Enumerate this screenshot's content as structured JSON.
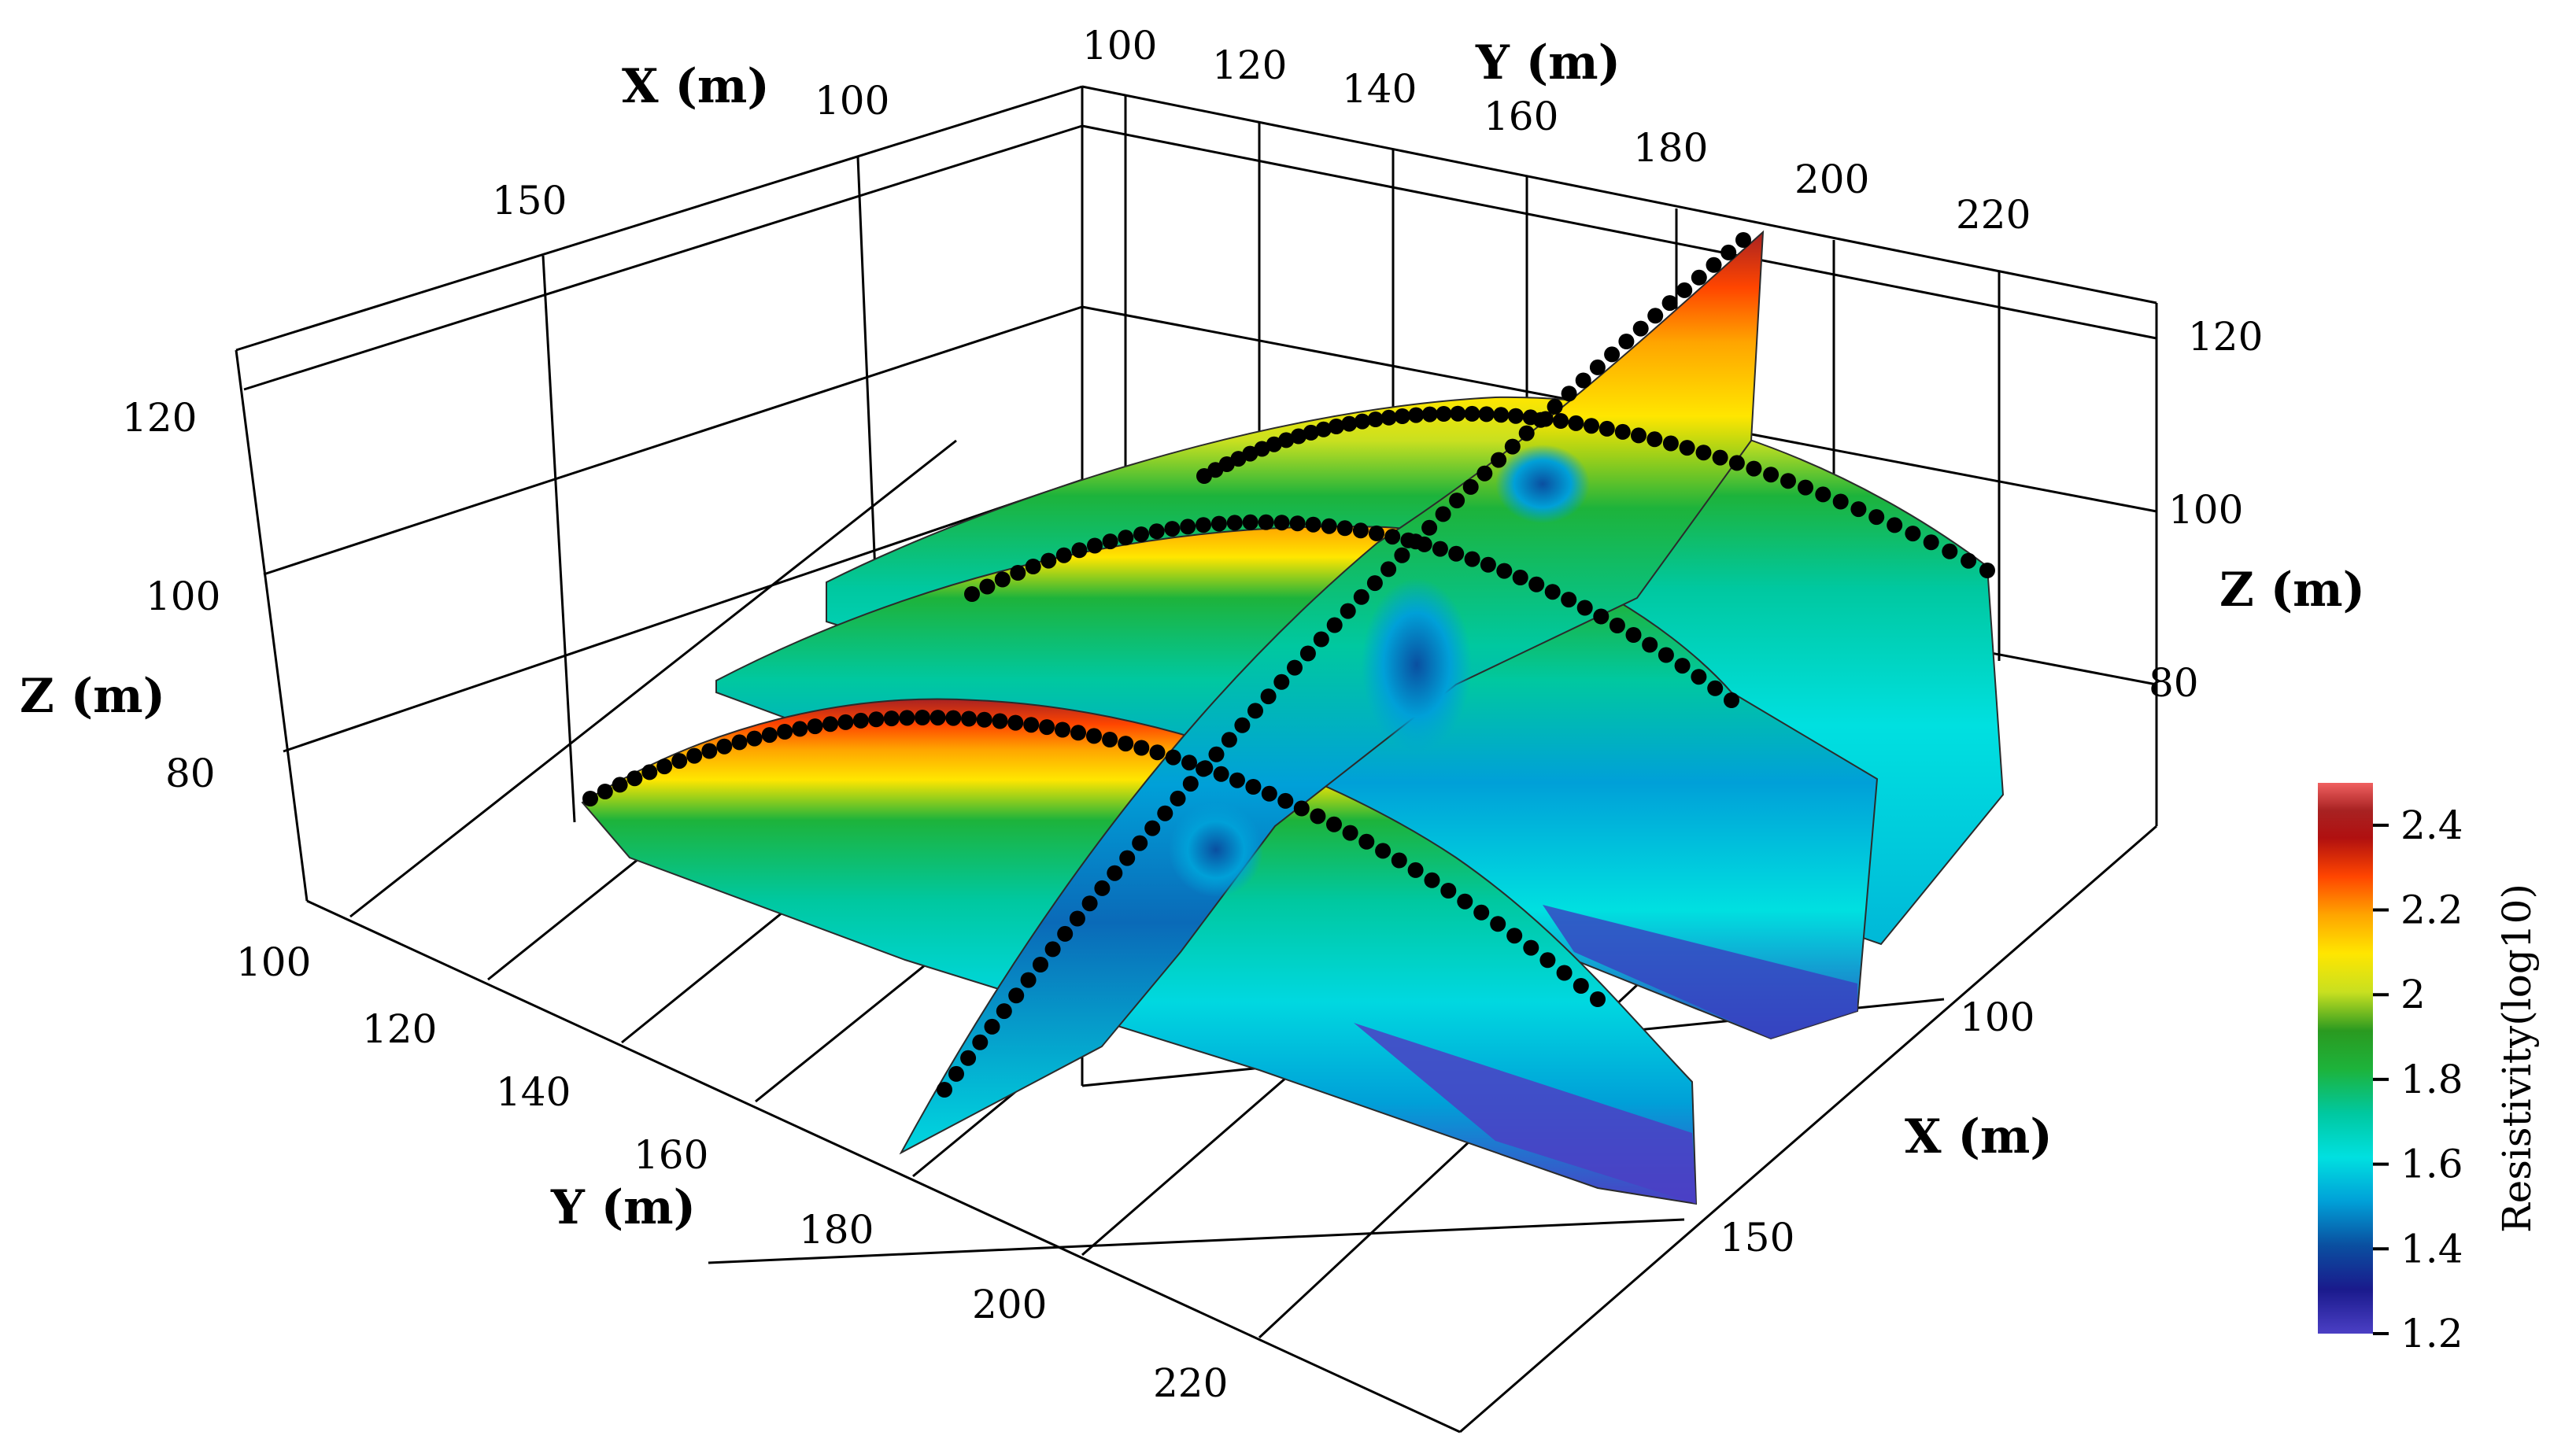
{
  "chart_data": {
    "type": "3d-resistivity-sections",
    "colorbar": {
      "title": "Resistivity(log10)",
      "ticks": [
        2.4,
        2.2,
        2,
        1.8,
        1.6,
        1.4,
        1.2
      ],
      "range": [
        1.2,
        2.5
      ],
      "colors": [
        "#4b3fc4",
        "#1a1a8c",
        "#0a4fa0",
        "#00a0d8",
        "#00e0e0",
        "#00c8a0",
        "#1db33b",
        "#2a9a20",
        "#c8e020",
        "#ffe600",
        "#ffa500",
        "#ff4500",
        "#b01010",
        "#a82222",
        "#f06060"
      ]
    },
    "axes": {
      "x_top": {
        "title": "X (m)",
        "ticks": [
          "150",
          "100"
        ]
      },
      "y_top": {
        "title": "Y (m)",
        "ticks": [
          "100",
          "120",
          "140",
          "160",
          "180",
          "200",
          "220"
        ]
      },
      "z_left": {
        "title": "Z (m)",
        "ticks": [
          "120",
          "100",
          "80"
        ]
      },
      "z_right": {
        "title": "Z (m)",
        "ticks": [
          "120",
          "100",
          "80"
        ]
      },
      "y_bottom": {
        "title": "Y (m)",
        "ticks": [
          "100",
          "120",
          "140",
          "160",
          "180",
          "200",
          "220"
        ]
      },
      "x_right": {
        "title": "X (m)",
        "ticks": [
          "100",
          "150"
        ]
      }
    },
    "ranges": {
      "x": [
        95,
        165
      ],
      "y": [
        100,
        230
      ],
      "z": [
        70,
        125
      ]
    }
  }
}
